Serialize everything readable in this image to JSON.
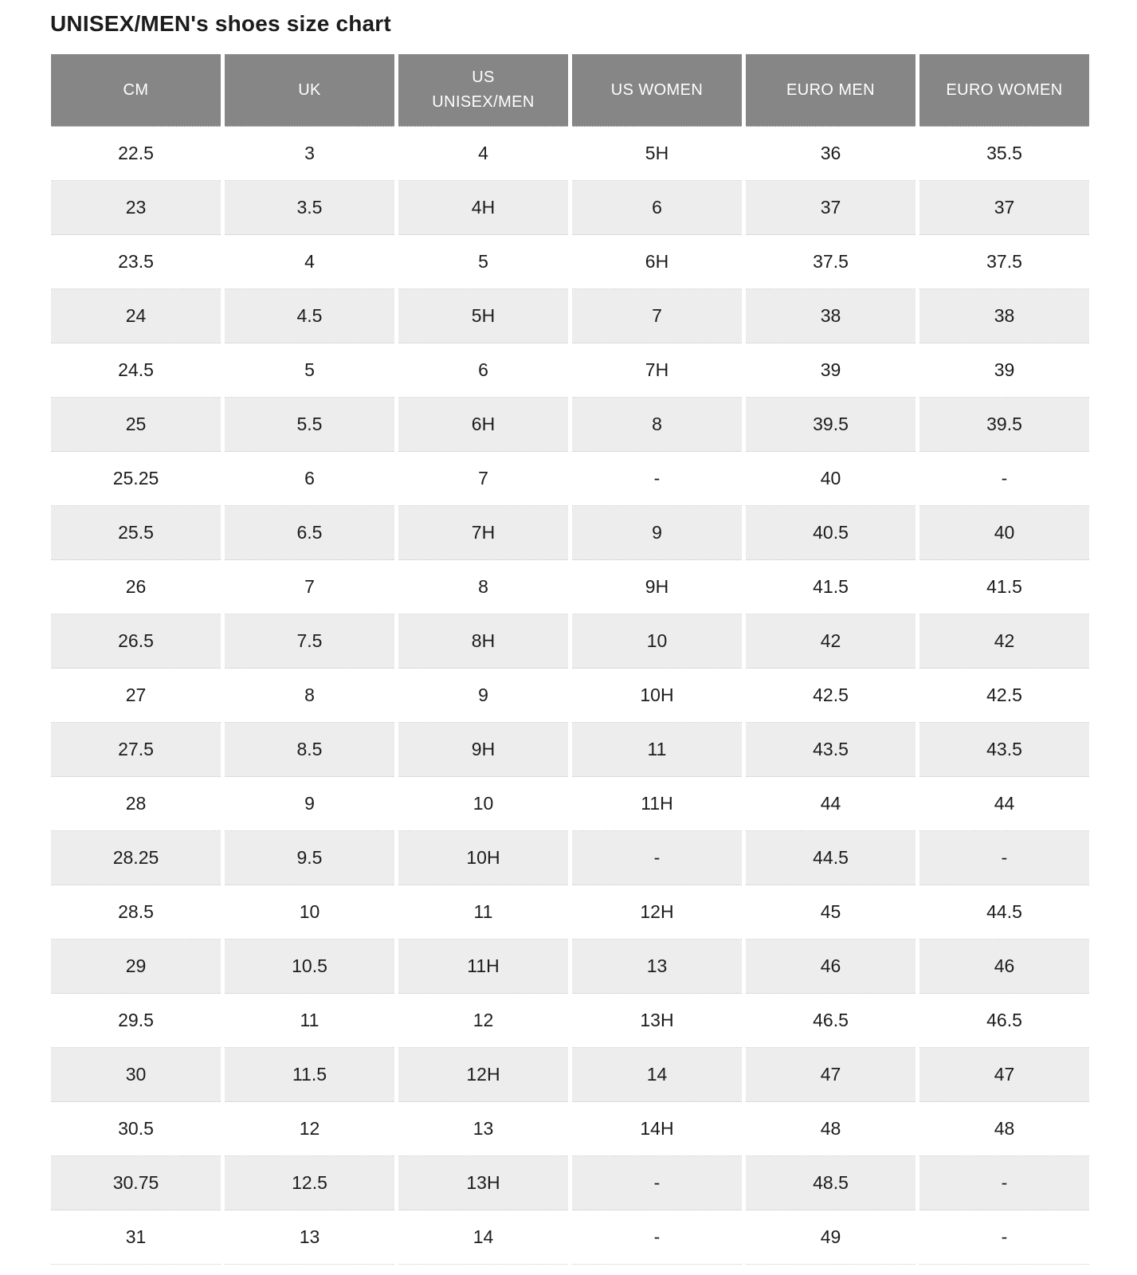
{
  "title": "UNISEX/MEN's shoes size chart",
  "table": {
    "columns": [
      "CM",
      "UK",
      "US\nUNISEX/MEN",
      "US WOMEN",
      "EURO MEN",
      "EURO WOMEN"
    ],
    "rows": [
      [
        "22.5",
        "3",
        "4",
        "5H",
        "36",
        "35.5"
      ],
      [
        "23",
        "3.5",
        "4H",
        "6",
        "37",
        "37"
      ],
      [
        "23.5",
        "4",
        "5",
        "6H",
        "37.5",
        "37.5"
      ],
      [
        "24",
        "4.5",
        "5H",
        "7",
        "38",
        "38"
      ],
      [
        "24.5",
        "5",
        "6",
        "7H",
        "39",
        "39"
      ],
      [
        "25",
        "5.5",
        "6H",
        "8",
        "39.5",
        "39.5"
      ],
      [
        "25.25",
        "6",
        "7",
        "-",
        "40",
        "-"
      ],
      [
        "25.5",
        "6.5",
        "7H",
        "9",
        "40.5",
        "40"
      ],
      [
        "26",
        "7",
        "8",
        "9H",
        "41.5",
        "41.5"
      ],
      [
        "26.5",
        "7.5",
        "8H",
        "10",
        "42",
        "42"
      ],
      [
        "27",
        "8",
        "9",
        "10H",
        "42.5",
        "42.5"
      ],
      [
        "27.5",
        "8.5",
        "9H",
        "11",
        "43.5",
        "43.5"
      ],
      [
        "28",
        "9",
        "10",
        "11H",
        "44",
        "44"
      ],
      [
        "28.25",
        "9.5",
        "10H",
        "-",
        "44.5",
        "-"
      ],
      [
        "28.5",
        "10",
        "11",
        "12H",
        "45",
        "44.5"
      ],
      [
        "29",
        "10.5",
        "11H",
        "13",
        "46",
        "46"
      ],
      [
        "29.5",
        "11",
        "12",
        "13H",
        "46.5",
        "46.5"
      ],
      [
        "30",
        "11.5",
        "12H",
        "14",
        "47",
        "47"
      ],
      [
        "30.5",
        "12",
        "13",
        "14H",
        "48",
        "48"
      ],
      [
        "30.75",
        "12.5",
        "13H",
        "-",
        "48.5",
        "-"
      ],
      [
        "31",
        "13",
        "14",
        "-",
        "49",
        "-"
      ]
    ]
  },
  "colors": {
    "header_bg": "#868686",
    "header_text": "#ffffff",
    "row_alt_bg": "#ededed",
    "text": "#1c1c1c",
    "dotted_border": "#c8c8c8"
  }
}
